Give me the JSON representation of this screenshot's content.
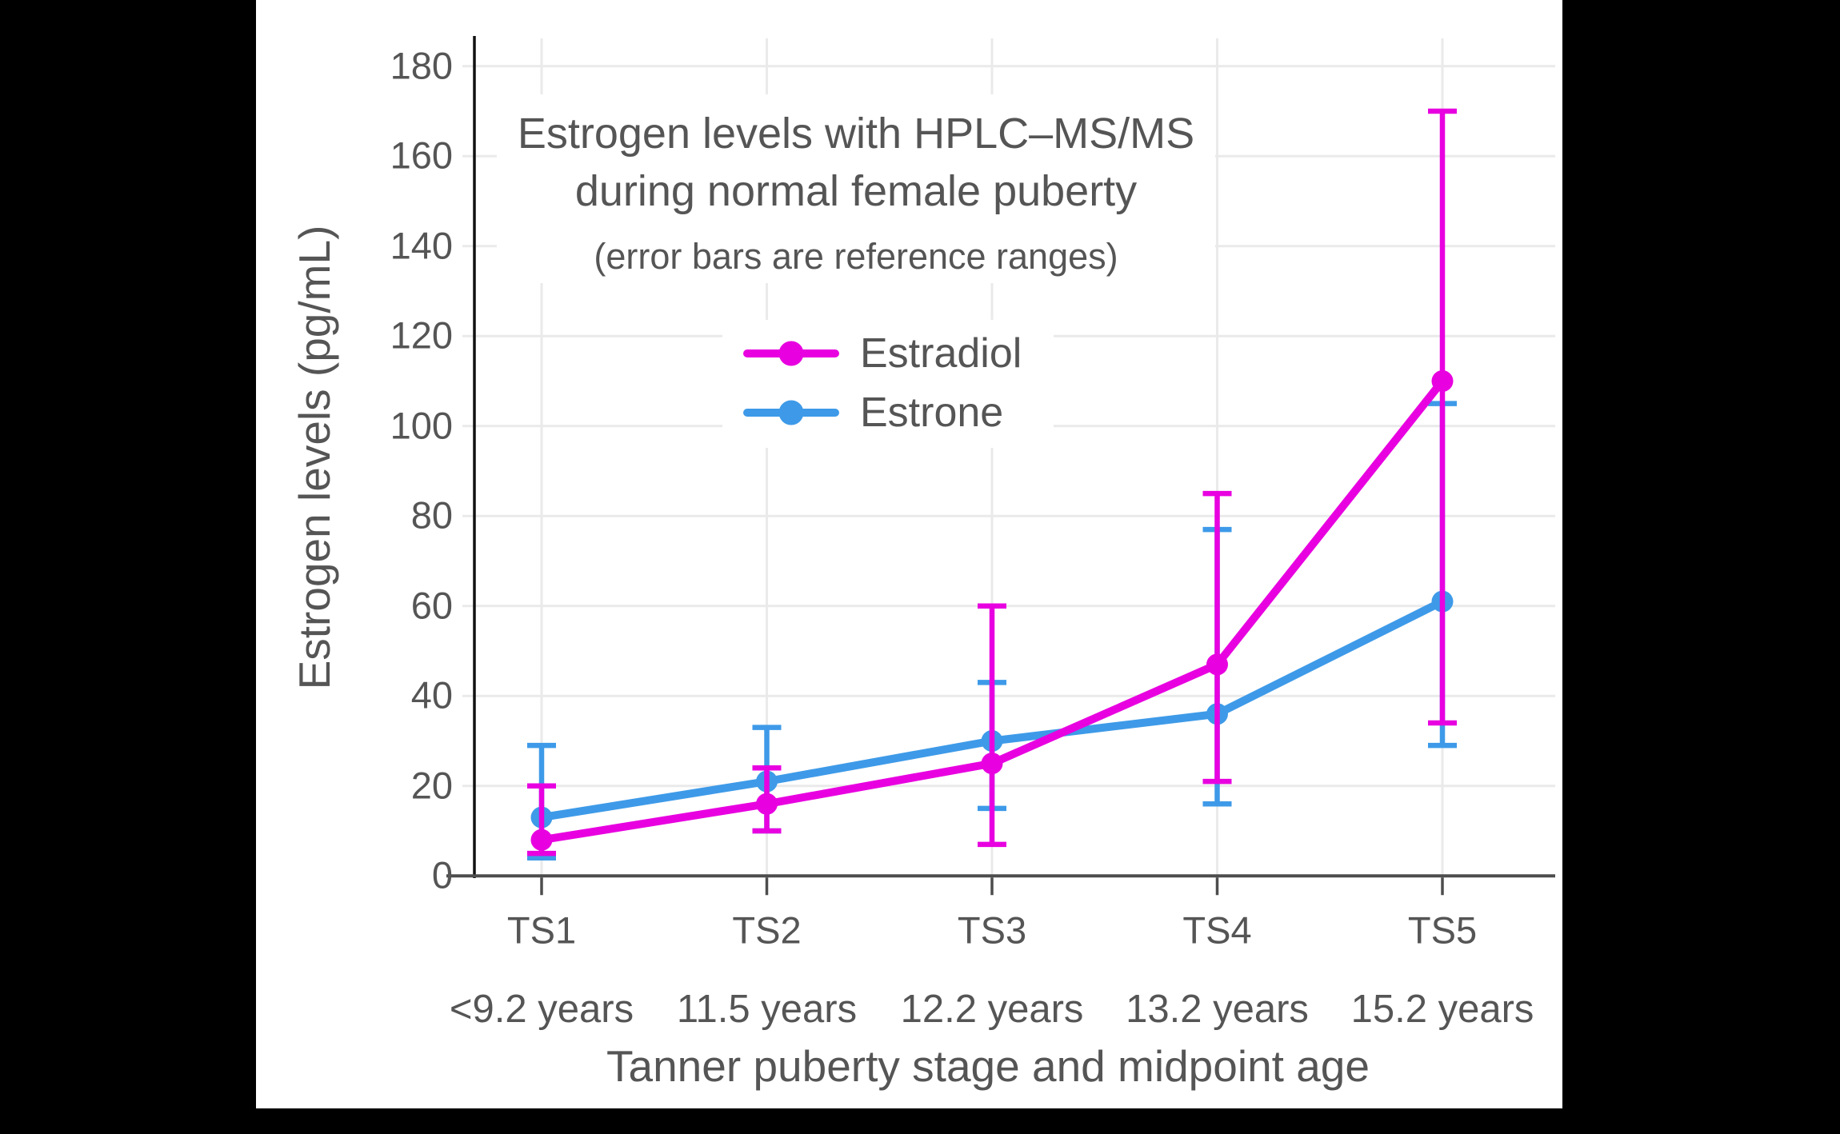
{
  "title": {
    "line1": "Estrogen levels with HPLC–MS/MS",
    "line2": "during normal female puberty",
    "subtitle": "(error bars are reference ranges)"
  },
  "legend": {
    "items": [
      {
        "label": "Estradiol",
        "color": "#E800E0"
      },
      {
        "label": "Estrone",
        "color": "#3E9AE8"
      }
    ]
  },
  "axes": {
    "y": {
      "title": "Estrogen levels (pg/mL)",
      "ticks": [
        0,
        20,
        40,
        60,
        80,
        100,
        120,
        140,
        160,
        180
      ]
    },
    "x": {
      "title": "Tanner puberty stage and midpoint age",
      "categories": [
        {
          "stage": "TS1",
          "age": "<9.2 years"
        },
        {
          "stage": "TS2",
          "age": "11.5 years"
        },
        {
          "stage": "TS3",
          "age": "12.2 years"
        },
        {
          "stage": "TS4",
          "age": "13.2 years"
        },
        {
          "stage": "TS5",
          "age": "15.2 years"
        }
      ]
    }
  },
  "chart_data": {
    "type": "line",
    "title": "Estrogen levels with HPLC–MS/MS during normal female puberty",
    "subtitle": "(error bars are reference ranges)",
    "categories": [
      "TS1",
      "TS2",
      "TS3",
      "TS4",
      "TS5"
    ],
    "category_ages": [
      "<9.2 years",
      "11.5 years",
      "12.2 years",
      "13.2 years",
      "15.2 years"
    ],
    "xlabel": "Tanner puberty stage and midpoint age",
    "ylabel": "Estrogen levels (pg/mL)",
    "ylim": [
      0,
      186
    ],
    "yticks": [
      0,
      20,
      40,
      60,
      80,
      100,
      120,
      140,
      160,
      180
    ],
    "grid": true,
    "legend_position": "inside-upper-center",
    "error_bar_meaning": "reference ranges",
    "series": [
      {
        "name": "Estradiol",
        "color": "#E800E0",
        "marker": "circle",
        "values": [
          8,
          16,
          25,
          47,
          110
        ],
        "range_low": [
          5,
          10,
          7,
          21,
          34
        ],
        "range_high": [
          20,
          24,
          60,
          85,
          170
        ]
      },
      {
        "name": "Estrone",
        "color": "#3E9AE8",
        "marker": "circle",
        "values": [
          13,
          21,
          30,
          36,
          61
        ],
        "range_low": [
          4,
          10,
          15,
          16,
          29
        ],
        "range_high": [
          29,
          33,
          43,
          77,
          105
        ]
      }
    ]
  },
  "colors": {
    "grid": "#EAEAEA",
    "y_axis_line": "#111111",
    "x_axis_line": "#4D4D4D",
    "text": "#555555",
    "panel_bg": "#FFFFFF",
    "page_bg": "#000000"
  }
}
